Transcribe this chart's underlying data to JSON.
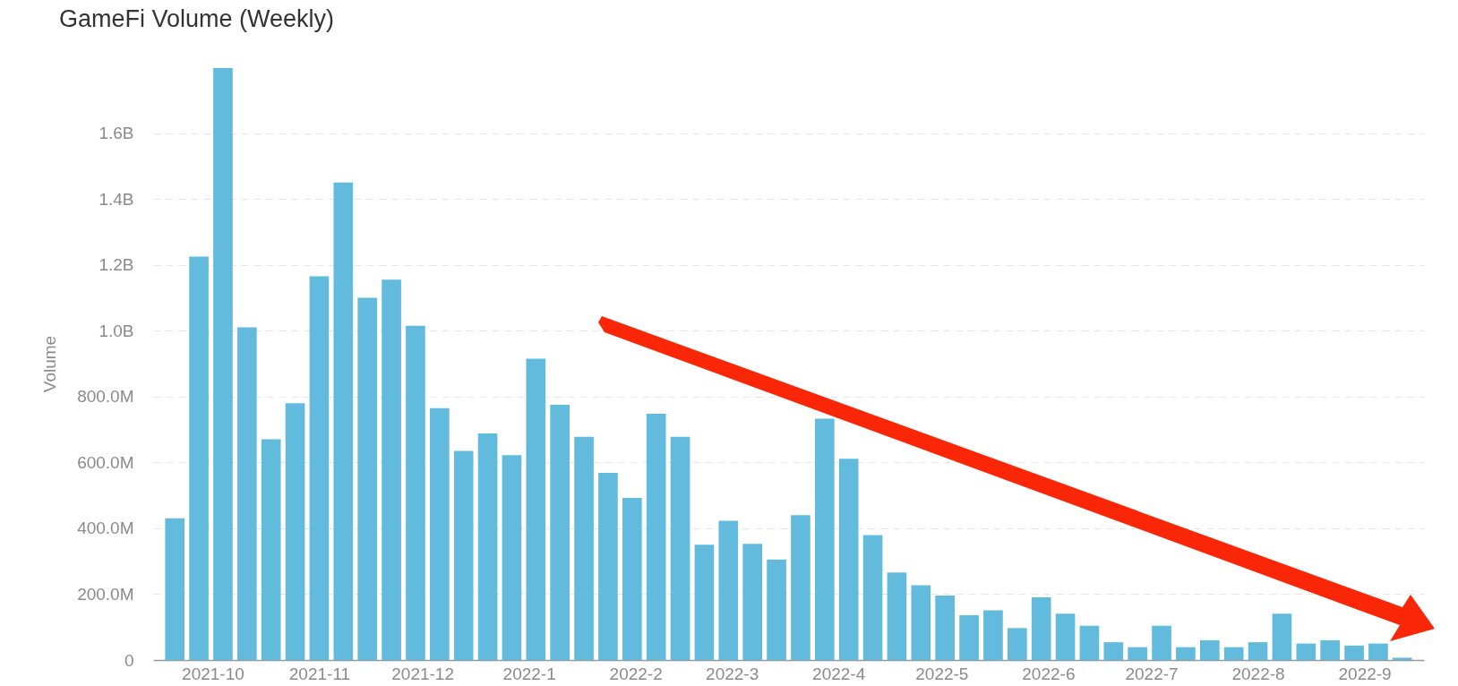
{
  "chart_data": {
    "type": "bar",
    "title": "GameFi Volume (Weekly)",
    "ylabel": "Volume",
    "x": [
      "2021-09-20",
      "2021-09-27",
      "2021-10-04",
      "2021-10-11",
      "2021-10-18",
      "2021-10-25",
      "2021-11-01",
      "2021-11-08",
      "2021-11-15",
      "2021-11-22",
      "2021-11-29",
      "2021-12-06",
      "2021-12-13",
      "2021-12-20",
      "2021-12-27",
      "2022-01-03",
      "2022-01-10",
      "2022-01-17",
      "2022-01-24",
      "2022-01-31",
      "2022-02-07",
      "2022-02-14",
      "2022-02-21",
      "2022-02-28",
      "2022-03-07",
      "2022-03-14",
      "2022-03-21",
      "2022-03-28",
      "2022-04-04",
      "2022-04-11",
      "2022-04-18",
      "2022-04-25",
      "2022-05-02",
      "2022-05-09",
      "2022-05-16",
      "2022-05-23",
      "2022-05-30",
      "2022-06-06",
      "2022-06-13",
      "2022-06-20",
      "2022-06-27",
      "2022-07-04",
      "2022-07-11",
      "2022-07-18",
      "2022-07-25",
      "2022-08-01",
      "2022-08-08",
      "2022-08-15",
      "2022-08-22",
      "2022-08-29",
      "2022-09-05",
      "2022-09-12"
    ],
    "values": [
      430000000,
      1225000000,
      1797000000,
      1010000000,
      670000000,
      780000000,
      1165000000,
      1450000000,
      1100000000,
      1155000000,
      1015000000,
      765000000,
      635000000,
      688000000,
      622000000,
      915000000,
      775000000,
      678000000,
      568000000,
      492000000,
      748000000,
      678000000,
      350000000,
      423000000,
      353000000,
      305000000,
      440000000,
      733000000,
      611000000,
      379000000,
      266000000,
      227000000,
      196000000,
      136000000,
      151000000,
      97000000,
      190000000,
      141000000,
      104000000,
      54000000,
      39000000,
      104000000,
      39000000,
      60000000,
      39000000,
      54000000,
      141000000,
      50000000,
      60000000,
      44000000,
      50000000,
      7000000
    ],
    "color": "#62bbdc",
    "xlim": [
      "2021-09-15",
      "2022-09-17"
    ],
    "xticks": [
      {
        "value": "2021-10-01",
        "label": "2021-10"
      },
      {
        "value": "2021-11-01",
        "label": "2021-11"
      },
      {
        "value": "2021-12-01",
        "label": "2021-12"
      },
      {
        "value": "2022-01-01",
        "label": "2022-1"
      },
      {
        "value": "2022-02-01",
        "label": "2022-2"
      },
      {
        "value": "2022-03-01",
        "label": "2022-3"
      },
      {
        "value": "2022-04-01",
        "label": "2022-4"
      },
      {
        "value": "2022-05-01",
        "label": "2022-5"
      },
      {
        "value": "2022-06-01",
        "label": "2022-6"
      },
      {
        "value": "2022-07-01",
        "label": "2022-7"
      },
      {
        "value": "2022-08-01",
        "label": "2022-8"
      },
      {
        "value": "2022-09-01",
        "label": "2022-9"
      }
    ],
    "ylim": [
      0,
      1800000000
    ],
    "yticks": [
      0,
      {
        "value": 200000000,
        "label": "200.0M"
      },
      {
        "value": 400000000,
        "label": "400.0M"
      },
      {
        "value": 600000000,
        "label": "600.0M"
      },
      {
        "value": 800000000,
        "label": "800.0M"
      },
      {
        "value": 1000000000,
        "label": "1.0B"
      },
      {
        "value": 1200000000,
        "label": "1.2B"
      },
      {
        "value": 1400000000,
        "label": "1.4B"
      },
      {
        "value": 1600000000,
        "label": "1.6B"
      }
    ],
    "grid": "y"
  }
}
